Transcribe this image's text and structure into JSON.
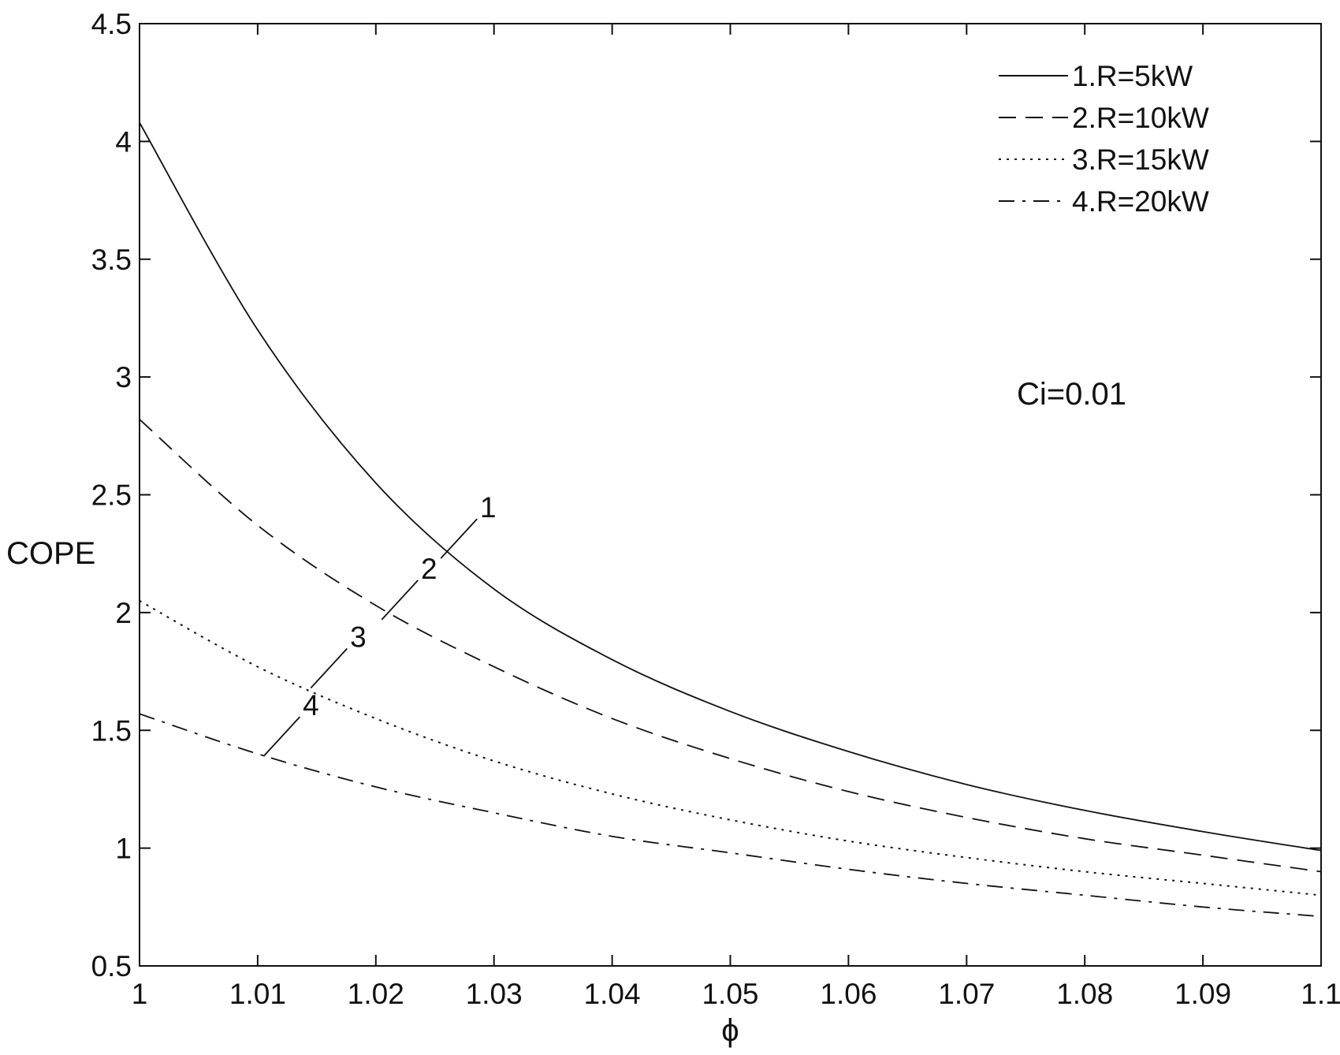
{
  "chart_data": {
    "type": "line",
    "title": "",
    "xlabel": "ϕ",
    "ylabel": "COPE",
    "xlim": [
      1.0,
      1.1
    ],
    "ylim": [
      0.5,
      4.5
    ],
    "xticks": [
      1.0,
      1.01,
      1.02,
      1.03,
      1.04,
      1.05,
      1.06,
      1.07,
      1.08,
      1.09,
      1.1
    ],
    "xtick_labels": [
      "1",
      "1.01",
      "1.02",
      "1.03",
      "1.04",
      "1.05",
      "1.06",
      "1.07",
      "1.08",
      "1.09",
      "1.1"
    ],
    "yticks": [
      0.5,
      1.0,
      1.5,
      2.0,
      2.5,
      3.0,
      3.5,
      4.0,
      4.5
    ],
    "ytick_labels": [
      "0.5",
      "1",
      "1.5",
      "2",
      "2.5",
      "3",
      "3.5",
      "4",
      "4.5"
    ],
    "grid": false,
    "legend_position": "top-right",
    "annotation": "Ci=0.01",
    "x": [
      1.0,
      1.01,
      1.02,
      1.03,
      1.04,
      1.05,
      1.06,
      1.07,
      1.08,
      1.09,
      1.1
    ],
    "series": [
      {
        "name": "1.R=5kW",
        "curve_label": "1",
        "style": "solid",
        "values": [
          4.08,
          3.2,
          2.55,
          2.1,
          1.8,
          1.58,
          1.41,
          1.27,
          1.16,
          1.07,
          0.99
        ]
      },
      {
        "name": "2.R=10kW",
        "curve_label": "2",
        "style": "dashed",
        "values": [
          2.82,
          2.37,
          2.03,
          1.77,
          1.55,
          1.38,
          1.24,
          1.13,
          1.04,
          0.97,
          0.9
        ]
      },
      {
        "name": "3.R=15kW",
        "curve_label": "3",
        "style": "dotted",
        "values": [
          2.05,
          1.77,
          1.55,
          1.37,
          1.23,
          1.12,
          1.03,
          0.96,
          0.9,
          0.85,
          0.8
        ]
      },
      {
        "name": "4.R=20kW",
        "curve_label": "4",
        "style": "dashdot",
        "values": [
          1.57,
          1.4,
          1.26,
          1.15,
          1.05,
          0.98,
          0.91,
          0.85,
          0.8,
          0.75,
          0.71
        ]
      }
    ],
    "curve_label_anchors": [
      {
        "label": "1",
        "x": 1.0255,
        "y": 2.23
      },
      {
        "label": "2",
        "x": 1.0205,
        "y": 1.97
      },
      {
        "label": "3",
        "x": 1.0145,
        "y": 1.68
      },
      {
        "label": "4",
        "x": 1.0105,
        "y": 1.39
      }
    ],
    "colors": {
      "line": "#111111",
      "axes": "#111111",
      "background": "#ffffff"
    }
  }
}
